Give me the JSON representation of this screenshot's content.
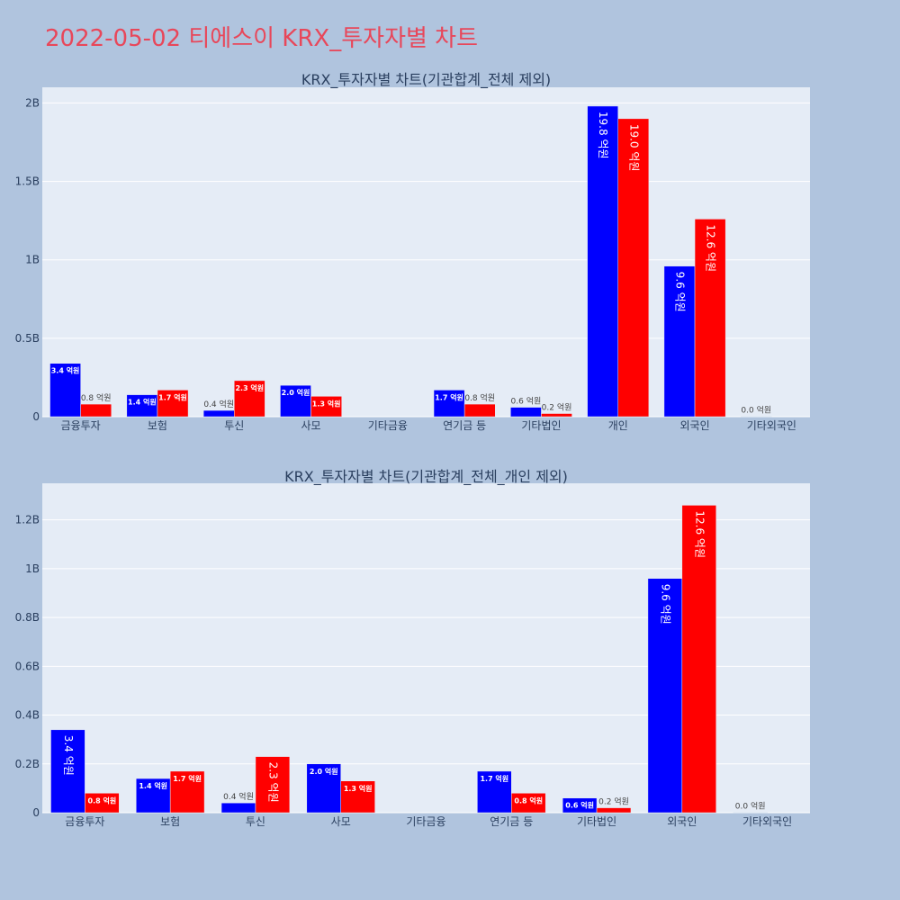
{
  "page_title": "2022-05-02 티에스이 KRX_투자자별 차트",
  "colors": {
    "buy": "#0000ff",
    "sell": "#ff0000",
    "title": "#e8475a",
    "plot_bg": "#e5ecf6",
    "page_bg": "#b0c4de"
  },
  "chart_data": [
    {
      "type": "bar",
      "title": "KRX_투자자별 차트(기관합계_전체 제외)",
      "categories": [
        "금융투자",
        "보험",
        "투신",
        "사모",
        "기타금융",
        "연기금 등",
        "기타법인",
        "개인",
        "외국인",
        "기타외국인"
      ],
      "series": [
        {
          "values": [
            0.34,
            0.14,
            0.04,
            0.2,
            null,
            0.17,
            0.06,
            1.98,
            0.96,
            0.0
          ],
          "labels": [
            "3.4 억원",
            "1.4 억원",
            "0.4 억원",
            "2.0 억원",
            "",
            "1.7 억원",
            "0.6 억원",
            "19.8 억원",
            "9.6 억원",
            "0.0 억원"
          ]
        },
        {
          "values": [
            0.08,
            0.17,
            0.23,
            0.13,
            null,
            0.08,
            0.02,
            1.9,
            1.26,
            null
          ],
          "labels": [
            "0.8 억원",
            "1.7 억원",
            "2.3 억원",
            "1.3 억원",
            "",
            "0.8 억원",
            "0.2 억원",
            "19.0 억원",
            "12.6 억원",
            ""
          ]
        }
      ],
      "unit": "B",
      "ylim": [
        0,
        2.1
      ],
      "yticks": [
        0,
        0.5,
        1,
        1.5,
        2
      ],
      "ytick_labels": [
        "0",
        "0.5B",
        "1B",
        "1.5B",
        "2B"
      ],
      "grid": true,
      "legend": "none"
    },
    {
      "type": "bar",
      "title": "KRX_투자자별 차트(기관합계_전체_개인 제외)",
      "categories": [
        "금융투자",
        "보험",
        "투신",
        "사모",
        "기타금융",
        "연기금 등",
        "기타법인",
        "외국인",
        "기타외국인"
      ],
      "series": [
        {
          "values": [
            0.34,
            0.14,
            0.04,
            0.2,
            null,
            0.17,
            0.06,
            0.96,
            0.0
          ],
          "labels": [
            "3.4 억원",
            "1.4 억원",
            "0.4 억원",
            "2.0 억원",
            "",
            "1.7 억원",
            "0.6 억원",
            "9.6 억원",
            "0.0 억원"
          ]
        },
        {
          "values": [
            0.08,
            0.17,
            0.23,
            0.13,
            null,
            0.08,
            0.02,
            1.26,
            null
          ],
          "labels": [
            "0.8 억원",
            "1.7 억원",
            "2.3 억원",
            "1.3 억원",
            "",
            "0.8 억원",
            "0.2 억원",
            "12.6 억원",
            ""
          ]
        }
      ],
      "unit": "B",
      "ylim": [
        0,
        1.35
      ],
      "yticks": [
        0,
        0.2,
        0.4,
        0.6,
        0.8,
        1.0,
        1.2
      ],
      "ytick_labels": [
        "0",
        "0.2B",
        "0.4B",
        "0.6B",
        "0.8B",
        "1B",
        "1.2B"
      ],
      "grid": true,
      "legend": "none"
    }
  ]
}
